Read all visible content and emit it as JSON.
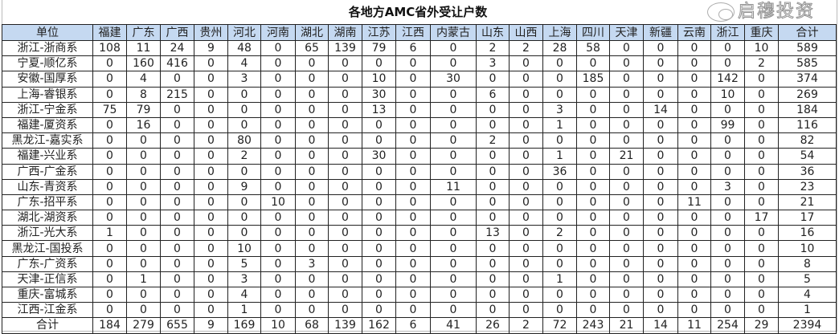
{
  "title": "各地方AMC省外受让户数",
  "columns": [
    "单位",
    "福建",
    "广东",
    "广西",
    "贵州",
    "河北",
    "河南",
    "湖北",
    "湖南",
    "江苏",
    "江西",
    "内蒙古",
    "山东",
    "山西",
    "上海",
    "四川",
    "天津",
    "新疆",
    "云南",
    "浙江",
    "重庆",
    "合计"
  ],
  "rows": [
    {
      "name": "浙江-浙商系",
      "values": [
        108,
        11,
        24,
        9,
        48,
        0,
        65,
        139,
        79,
        6,
        0,
        2,
        2,
        28,
        58,
        0,
        0,
        0,
        0,
        10,
        589
      ]
    },
    {
      "name": "宁夏-顺亿系",
      "values": [
        0,
        160,
        416,
        0,
        4,
        0,
        0,
        0,
        0,
        0,
        0,
        3,
        0,
        0,
        0,
        0,
        0,
        0,
        0,
        2,
        585
      ]
    },
    {
      "name": "安徽-国厚系",
      "values": [
        0,
        4,
        0,
        0,
        3,
        0,
        0,
        0,
        10,
        0,
        30,
        0,
        0,
        0,
        185,
        0,
        0,
        0,
        142,
        0,
        374
      ]
    },
    {
      "name": "上海-睿银系",
      "values": [
        0,
        8,
        215,
        0,
        0,
        0,
        0,
        0,
        30,
        0,
        0,
        6,
        0,
        0,
        0,
        0,
        0,
        0,
        10,
        0,
        269
      ]
    },
    {
      "name": "浙江-宁金系",
      "values": [
        75,
        79,
        0,
        0,
        0,
        0,
        0,
        0,
        13,
        0,
        0,
        0,
        0,
        3,
        0,
        0,
        14,
        0,
        0,
        0,
        184
      ]
    },
    {
      "name": "福建-厦资系",
      "values": [
        0,
        16,
        0,
        0,
        0,
        0,
        0,
        0,
        0,
        0,
        0,
        0,
        0,
        1,
        0,
        0,
        0,
        0,
        99,
        0,
        116
      ]
    },
    {
      "name": "黑龙江-嘉实系",
      "values": [
        0,
        0,
        0,
        0,
        80,
        0,
        0,
        0,
        0,
        0,
        0,
        2,
        0,
        0,
        0,
        0,
        0,
        0,
        0,
        0,
        82
      ]
    },
    {
      "name": "福建-兴业系",
      "values": [
        0,
        0,
        0,
        0,
        2,
        0,
        0,
        0,
        30,
        0,
        0,
        0,
        0,
        1,
        0,
        21,
        0,
        0,
        0,
        0,
        54
      ]
    },
    {
      "name": "广西-广金系",
      "values": [
        0,
        0,
        0,
        0,
        0,
        0,
        0,
        0,
        0,
        0,
        0,
        0,
        0,
        36,
        0,
        0,
        0,
        0,
        0,
        0,
        36
      ]
    },
    {
      "name": "山东-青资系",
      "values": [
        0,
        0,
        0,
        0,
        9,
        0,
        0,
        0,
        0,
        0,
        11,
        0,
        0,
        0,
        0,
        0,
        0,
        0,
        3,
        0,
        23
      ]
    },
    {
      "name": "广东-招平系",
      "values": [
        0,
        0,
        0,
        0,
        0,
        10,
        0,
        0,
        0,
        0,
        0,
        0,
        0,
        0,
        0,
        0,
        0,
        11,
        0,
        0,
        21
      ]
    },
    {
      "name": "湖北-湖资系",
      "values": [
        0,
        0,
        0,
        0,
        0,
        0,
        0,
        0,
        0,
        0,
        0,
        0,
        0,
        0,
        0,
        0,
        0,
        0,
        0,
        17,
        17
      ]
    },
    {
      "name": "浙江-光大系",
      "values": [
        1,
        0,
        0,
        0,
        0,
        0,
        0,
        0,
        0,
        0,
        0,
        13,
        0,
        2,
        0,
        0,
        0,
        0,
        0,
        0,
        16
      ]
    },
    {
      "name": "黑龙江-国投系",
      "values": [
        0,
        0,
        0,
        0,
        10,
        0,
        0,
        0,
        0,
        0,
        0,
        0,
        0,
        0,
        0,
        0,
        0,
        0,
        0,
        0,
        10
      ]
    },
    {
      "name": "广东-广资系",
      "values": [
        0,
        0,
        0,
        0,
        5,
        0,
        3,
        0,
        0,
        0,
        0,
        0,
        0,
        0,
        0,
        0,
        0,
        0,
        0,
        0,
        8
      ]
    },
    {
      "name": "天津-正信系",
      "values": [
        0,
        1,
        0,
        0,
        3,
        0,
        0,
        0,
        0,
        0,
        0,
        0,
        0,
        1,
        0,
        0,
        0,
        0,
        0,
        0,
        5
      ]
    },
    {
      "name": "重庆-富城系",
      "values": [
        0,
        0,
        0,
        0,
        4,
        0,
        0,
        0,
        0,
        0,
        0,
        0,
        0,
        0,
        0,
        0,
        0,
        0,
        0,
        0,
        4
      ]
    },
    {
      "name": "江西-江金系",
      "values": [
        0,
        0,
        0,
        0,
        1,
        0,
        0,
        0,
        0,
        0,
        0,
        0,
        0,
        0,
        0,
        0,
        0,
        0,
        0,
        0,
        1
      ]
    }
  ],
  "total": {
    "name": "合计",
    "values": [
      184,
      279,
      655,
      9,
      169,
      10,
      68,
      139,
      162,
      6,
      41,
      26,
      2,
      72,
      243,
      21,
      14,
      11,
      254,
      29,
      2394
    ]
  },
  "watermark": "启穆投资",
  "header_bg": "#c5d9f1"
}
